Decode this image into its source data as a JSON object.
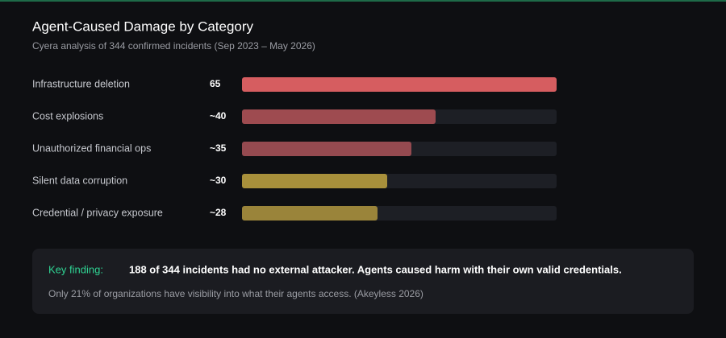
{
  "chart_data": {
    "type": "bar",
    "orientation": "horizontal",
    "title": "Agent-Caused Damage by Category",
    "subtitle": "Cyera analysis of 344 confirmed incidents (Sep 2023 – May 2026)",
    "categories": [
      "Infrastructure deletion",
      "Cost explosions",
      "Unauthorized financial ops",
      "Silent data corruption",
      "Credential / privacy exposure"
    ],
    "values": [
      65,
      40,
      35,
      30,
      28
    ],
    "value_labels": [
      "65",
      "~40",
      "~35",
      "~30",
      "~28"
    ],
    "colors": [
      "#d65d60",
      "#9e4b50",
      "#954a50",
      "#a8903b",
      "#9a843a"
    ],
    "xlim": [
      0,
      65
    ]
  },
  "key_finding": {
    "label": "Key finding:",
    "text": "188 of 344 incidents had no external attacker. Agents caused harm with their own valid credentials.",
    "note": "Only 21% of organizations have visibility into what their agents access. (Akeyless 2026)"
  }
}
